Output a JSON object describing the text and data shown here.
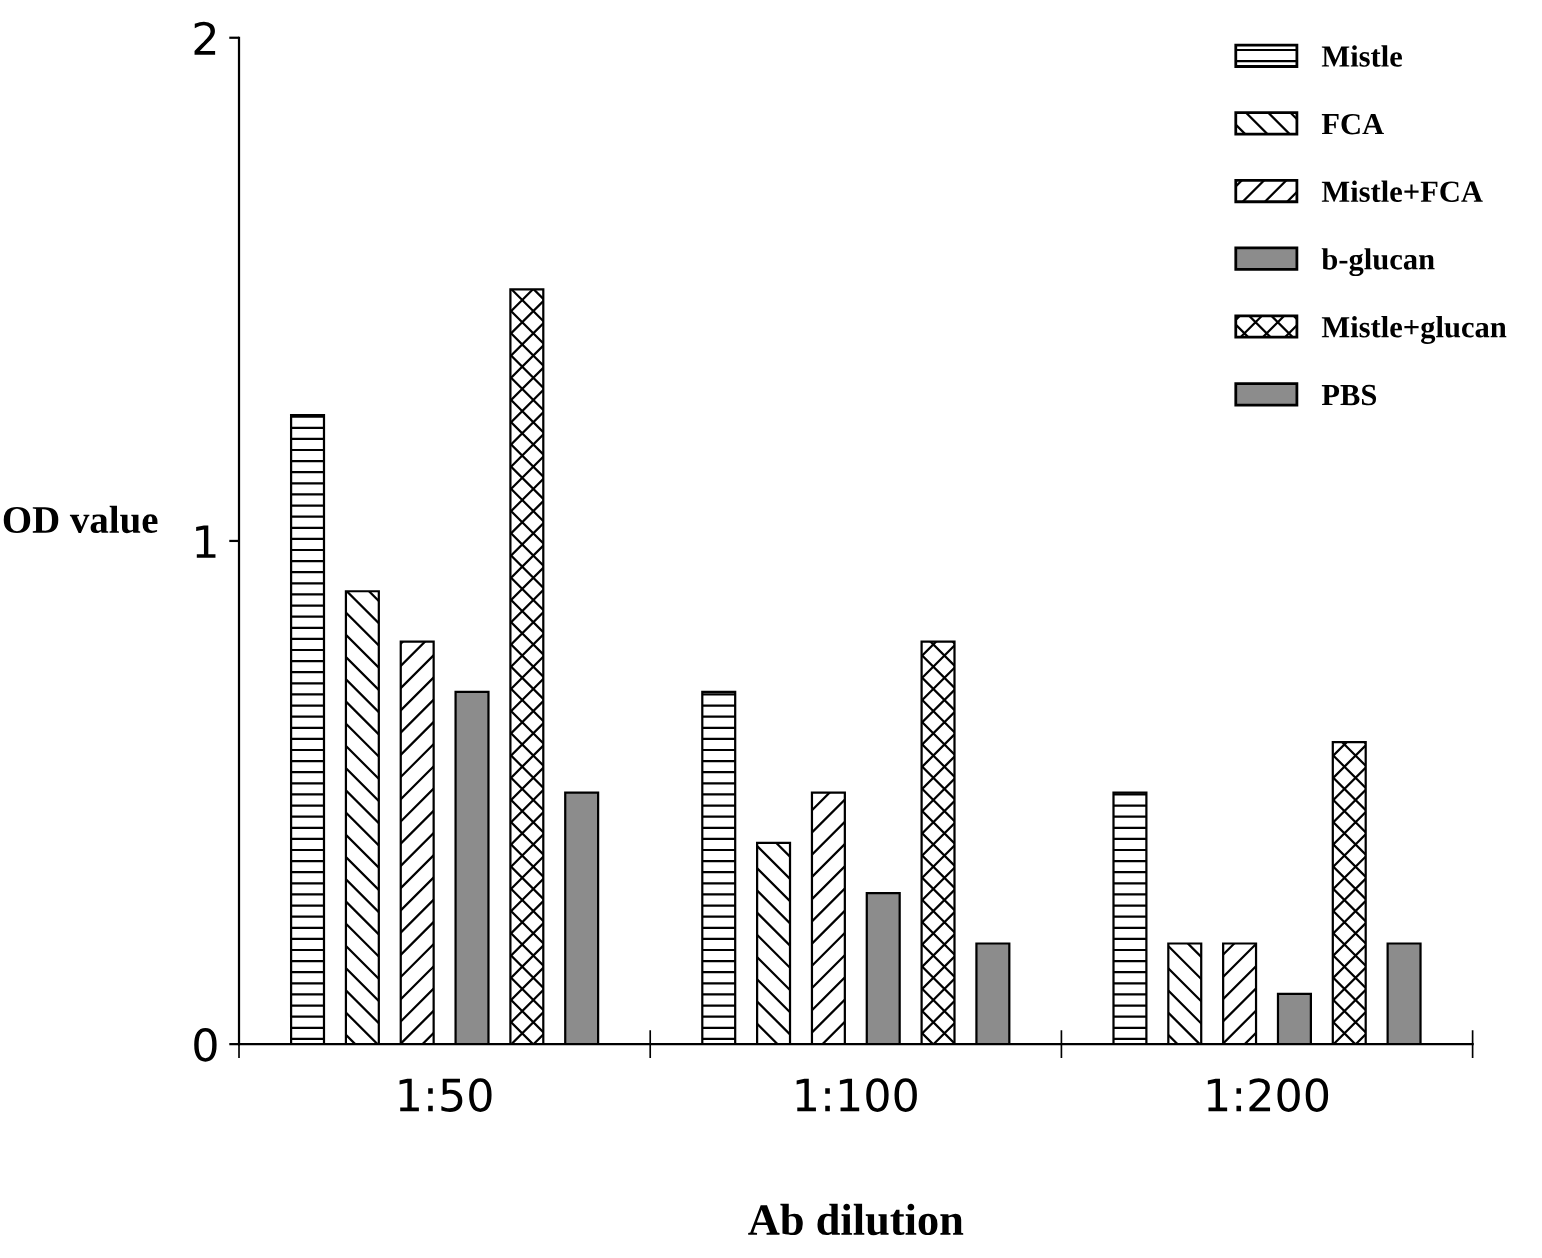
{
  "chart_data": {
    "type": "bar",
    "xlabel": "Ab dilution",
    "ylabel": "OD value",
    "categories": [
      "1:50",
      "1:100",
      "1:200"
    ],
    "series": [
      {
        "name": "Mistle",
        "color": "#000000",
        "values": [
          1.25,
          0.7,
          0.5
        ]
      },
      {
        "name": "FCA",
        "color": "#000000",
        "values": [
          0.9,
          0.4,
          0.2
        ]
      },
      {
        "name": "Mistle+FCA",
        "color": "#000000",
        "values": [
          0.8,
          0.5,
          0.2
        ]
      },
      {
        "name": "b-glucan",
        "color": "#8c8c8c",
        "values": [
          0.7,
          0.3,
          0.1
        ]
      },
      {
        "name": "Mistle+glucan",
        "color": "#000000",
        "values": [
          1.5,
          0.8,
          0.6
        ]
      },
      {
        "name": "PBS",
        "color": "#8c8c8c",
        "values": [
          0.5,
          0.2,
          0.2
        ]
      }
    ],
    "ylim": [
      0,
      2
    ],
    "yticks": [
      0,
      1,
      2
    ],
    "grid": false,
    "legend": "top right"
  }
}
